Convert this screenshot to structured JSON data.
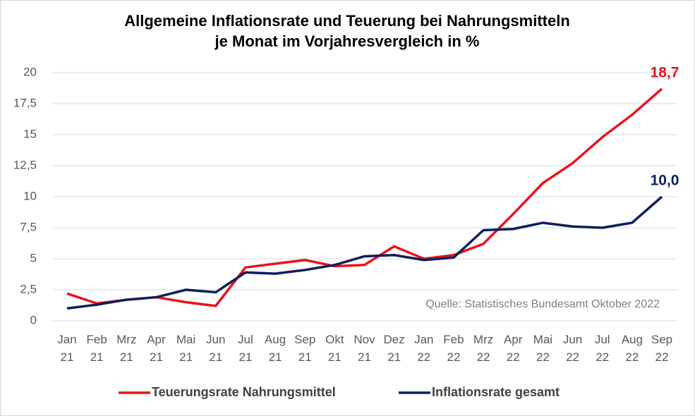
{
  "chart_data": {
    "type": "line",
    "title": [
      "Allgemeine Inflationsrate und Teuerung bei Nahrungsmitteln",
      "je Monat im Vorjahresvergleich in %"
    ],
    "categories": [
      "Jan 21",
      "Feb 21",
      "Mrz 21",
      "Apr 21",
      "Mai 21",
      "Jun 21",
      "Jul 21",
      "Aug 21",
      "Sep 21",
      "Okt 21",
      "Nov 21",
      "Dez 21",
      "Jan 22",
      "Feb 22",
      "Mrz 22",
      "Apr 22",
      "Mai 22",
      "Jun 22",
      "Jul 22",
      "Aug 22",
      "Sep 22"
    ],
    "series": [
      {
        "name": "Teuerungsrate Nahrungsmittel",
        "color": "#e8141b",
        "values": [
          2.2,
          1.4,
          1.7,
          1.9,
          1.5,
          1.2,
          4.3,
          4.6,
          4.9,
          4.4,
          4.5,
          6.0,
          5.0,
          5.3,
          6.2,
          8.6,
          11.1,
          12.7,
          14.8,
          16.6,
          18.7
        ],
        "value_labels": [
          null,
          null,
          null,
          null,
          null,
          null,
          null,
          null,
          null,
          null,
          null,
          null,
          null,
          null,
          null,
          null,
          null,
          null,
          null,
          null,
          "18,7"
        ]
      },
      {
        "name": "Inflationsrate gesamt",
        "color": "#0d1f5c",
        "values": [
          1.0,
          1.3,
          1.7,
          1.9,
          2.5,
          2.3,
          3.9,
          3.8,
          4.1,
          4.5,
          5.2,
          5.3,
          4.9,
          5.1,
          7.3,
          7.4,
          7.9,
          7.6,
          7.5,
          7.9,
          10.0
        ],
        "value_labels": [
          null,
          null,
          null,
          null,
          null,
          null,
          null,
          null,
          null,
          null,
          null,
          null,
          null,
          null,
          null,
          null,
          null,
          null,
          null,
          null,
          "10,0"
        ]
      }
    ],
    "ylim": [
      0,
      20
    ],
    "yticks": [
      0,
      {
        "value": 2.5,
        "label": "2,5"
      },
      5,
      {
        "value": 7.5,
        "label": "7,5"
      },
      10,
      {
        "value": 12.5,
        "label": "12,5"
      },
      15,
      {
        "value": 17.5,
        "label": "17,5"
      },
      20
    ],
    "grid": true,
    "source": "Quelle: Statistisches Bundesamt Oktober 2022",
    "legend": "bottom"
  }
}
